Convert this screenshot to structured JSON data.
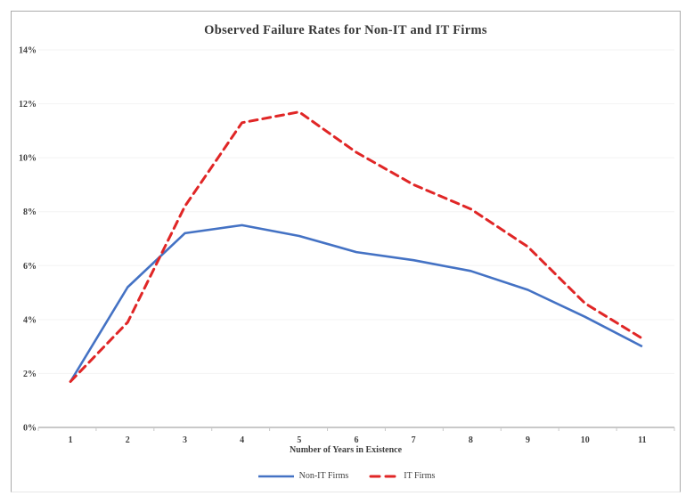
{
  "chart_data": {
    "type": "line",
    "title": "Observed Failure Rates for Non-IT and IT Firms",
    "xlabel": "Number of Years in Existence",
    "ylabel": "",
    "categories": [
      "1",
      "2",
      "3",
      "4",
      "5",
      "6",
      "7",
      "8",
      "9",
      "10",
      "11"
    ],
    "y_ticks": [
      "0%",
      "2%",
      "4%",
      "6%",
      "8%",
      "10%",
      "12%",
      "14%"
    ],
    "ylim": [
      0,
      14
    ],
    "y_tick_step": 2,
    "grid": true,
    "legend_position": "bottom",
    "series": [
      {
        "name": "Non-IT Firms",
        "color": "#4472c4",
        "style": "solid",
        "values": [
          1.7,
          5.2,
          7.2,
          7.5,
          7.1,
          6.5,
          6.2,
          5.8,
          5.1,
          4.1,
          3.0
        ]
      },
      {
        "name": "IT Firms",
        "color": "#e02626",
        "style": "dashed",
        "values": [
          1.7,
          3.9,
          8.2,
          11.3,
          11.7,
          10.2,
          9.0,
          8.1,
          6.7,
          4.6,
          3.3
        ]
      }
    ],
    "colors": {
      "grid_line": "#f3f3f3",
      "axis_line": "#c9c9c9",
      "tick_mark": "#c9c9c9",
      "text": "#3f3f3f"
    }
  }
}
